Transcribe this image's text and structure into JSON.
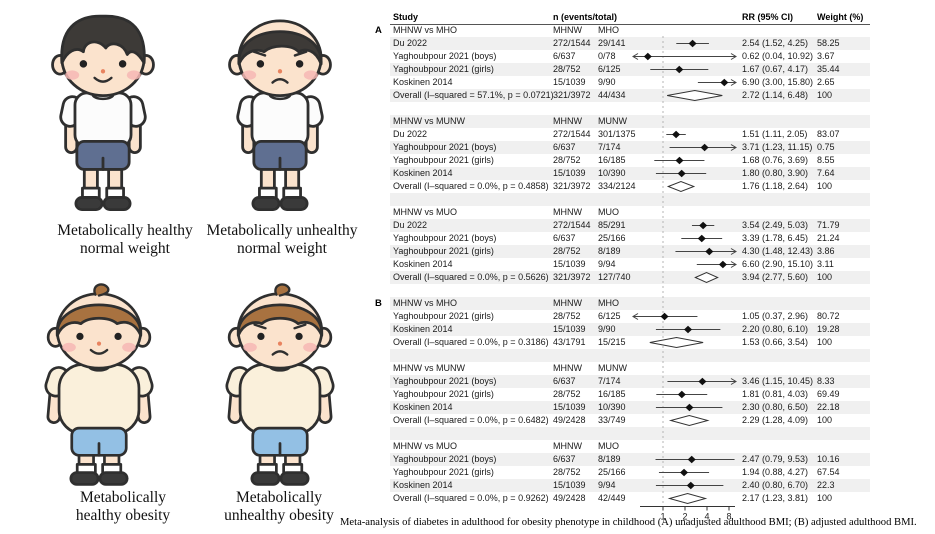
{
  "figure": {
    "caption": "Meta-analysis of diabetes in adulthood for obesity phenotype in childhood (A) unadjusted adulthood BMI; (B) adjusted adulthood BMI."
  },
  "colors": {
    "stripe": "#f0f0f0",
    "ci_line": "#444444",
    "point_diamond": "#111111",
    "overall_diamond_fill": "#ffffff",
    "null_line": "#b5b5b5",
    "skin": "#fbe3cd",
    "blush": "#f6b7b4",
    "dark_hair": "#3d3a37",
    "brown_hair": "#a87240",
    "white_shirt": "#fcfcfc",
    "cream_shirt": "#faf0db",
    "slate_shorts": "#5f6f91",
    "lightblue_shorts": "#93c0e4"
  },
  "phenotypes": {
    "items": [
      {
        "caption_line1": "Metabolically healthy",
        "caption_line2": "normal weight",
        "build": "normal",
        "mood": "happy",
        "hair_style": "curly",
        "colors": {
          "hair": "#3d3a37",
          "shirt": "#fcfcfc",
          "shorts": "#5f6f91",
          "skin": "#fbe3cd"
        }
      },
      {
        "caption_line1": "Metabolically unhealthy",
        "caption_line2": "normal weight",
        "build": "normal",
        "mood": "sad",
        "hair_style": "bowl",
        "colors": {
          "hair": "#3d3a37",
          "shirt": "#fcfcfc",
          "shorts": "#5f6f91",
          "skin": "#fbe3cd"
        }
      },
      {
        "caption_line1": "Metabolically",
        "caption_line2": "healthy obesity",
        "build": "obese",
        "mood": "happy",
        "hair_style": "sprout",
        "colors": {
          "hair": "#a87240",
          "shirt": "#faf0db",
          "shorts": "#93c0e4",
          "skin": "#fbe3cd"
        }
      },
      {
        "caption_line1": "Metabolically",
        "caption_line2": "unhealthy obesity",
        "build": "obese",
        "mood": "sad",
        "hair_style": "sprout",
        "colors": {
          "hair": "#a87240",
          "shirt": "#faf0db",
          "shorts": "#93c0e4",
          "skin": "#fbe3cd"
        }
      }
    ]
  },
  "chart_data": {
    "type": "scatter",
    "subtype": "forest-plot",
    "x_scale": "log2",
    "x_ticks": [
      1,
      2,
      4,
      8
    ],
    "x_plot_range": [
      0.39,
      10
    ],
    "columns": {
      "study": "Study",
      "n": "n (events/total)",
      "rr": "RR (95% CI)",
      "weight": "Weight (%)"
    },
    "sections": [
      {
        "panel": "A",
        "comparison": "MHNW vs MHO",
        "group1": "MHNW",
        "group2": "MHO",
        "studies": [
          {
            "study": "Du 2022",
            "n1": "272/1544",
            "n2": "29/141",
            "rr": 2.54,
            "ci_low": 1.52,
            "ci_high": 4.25,
            "label": "2.54 (1.52, 4.25)",
            "weight": "58.25"
          },
          {
            "study": "Yaghoubpour 2021 (boys)",
            "n1": "6/637",
            "n2": "0/78",
            "rr": 0.62,
            "ci_low": 0.04,
            "ci_high": 10.92,
            "label": "0.62 (0.04, 10.92)",
            "weight": "3.67"
          },
          {
            "study": "Yaghoubpour 2021 (girls)",
            "n1": "28/752",
            "n2": "6/125",
            "rr": 1.67,
            "ci_low": 0.67,
            "ci_high": 4.17,
            "label": "1.67 (0.67, 4.17)",
            "weight": "35.44"
          },
          {
            "study": "Koskinen 2014",
            "n1": "15/1039",
            "n2": "9/90",
            "rr": 6.9,
            "ci_low": 3.0,
            "ci_high": 15.8,
            "label": "6.90 (3.00, 15.80)",
            "weight": "2.65"
          }
        ],
        "overall": {
          "study": "Overall (I–squared = 57.1%, p = 0.0721)",
          "n1": "321/3972",
          "n2": "44/434",
          "rr": 2.72,
          "ci_low": 1.14,
          "ci_high": 6.48,
          "label": "2.72 (1.14, 6.48)",
          "weight": "100"
        }
      },
      {
        "panel": "",
        "comparison": "MHNW vs MUNW",
        "group1": "MHNW",
        "group2": "MUNW",
        "studies": [
          {
            "study": "Du 2022",
            "n1": "272/1544",
            "n2": "301/1375",
            "rr": 1.51,
            "ci_low": 1.11,
            "ci_high": 2.05,
            "label": "1.51 (1.11, 2.05)",
            "weight": "83.07"
          },
          {
            "study": "Yaghoubpour 2021 (boys)",
            "n1": "6/637",
            "n2": "7/174",
            "rr": 3.71,
            "ci_low": 1.23,
            "ci_high": 11.15,
            "label": "3.71 (1.23, 11.15)",
            "weight": "0.75"
          },
          {
            "study": "Yaghoubpour 2021 (girls)",
            "n1": "28/752",
            "n2": "16/185",
            "rr": 1.68,
            "ci_low": 0.76,
            "ci_high": 3.69,
            "label": "1.68 (0.76, 3.69)",
            "weight": "8.55"
          },
          {
            "study": "Koskinen 2014",
            "n1": "15/1039",
            "n2": "10/390",
            "rr": 1.8,
            "ci_low": 0.8,
            "ci_high": 3.9,
            "label": "1.80 (0.80, 3.90)",
            "weight": "7.64"
          }
        ],
        "overall": {
          "study": "Overall (I–squared = 0.0%, p = 0.4858)",
          "n1": "321/3972",
          "n2": "334/2124",
          "rr": 1.76,
          "ci_low": 1.18,
          "ci_high": 2.64,
          "label": "1.76 (1.18, 2.64)",
          "weight": "100"
        }
      },
      {
        "panel": "",
        "comparison": "MHNW vs MUO",
        "group1": "MHNW",
        "group2": "MUO",
        "studies": [
          {
            "study": "Du 2022",
            "n1": "272/1544",
            "n2": "85/291",
            "rr": 3.54,
            "ci_low": 2.49,
            "ci_high": 5.03,
            "label": "3.54 (2.49, 5.03)",
            "weight": "71.79"
          },
          {
            "study": "Yaghoubpour 2021 (boys)",
            "n1": "6/637",
            "n2": "25/166",
            "rr": 3.39,
            "ci_low": 1.78,
            "ci_high": 6.45,
            "label": "3.39 (1.78, 6.45)",
            "weight": "21.24"
          },
          {
            "study": "Yaghoubpour 2021 (girls)",
            "n1": "28/752",
            "n2": "8/189",
            "rr": 4.3,
            "ci_low": 1.48,
            "ci_high": 12.43,
            "label": "4.30 (1.48, 12.43)",
            "weight": "3.86"
          },
          {
            "study": "Koskinen 2014",
            "n1": "15/1039",
            "n2": "9/94",
            "rr": 6.6,
            "ci_low": 2.9,
            "ci_high": 15.1,
            "label": "6.60 (2.90, 15.10)",
            "weight": "3.11"
          }
        ],
        "overall": {
          "study": "Overall (I–squared = 0.0%, p = 0.5626)",
          "n1": "321/3972",
          "n2": "127/740",
          "rr": 3.94,
          "ci_low": 2.77,
          "ci_high": 5.6,
          "label": "3.94 (2.77, 5.60)",
          "weight": "100"
        }
      },
      {
        "panel": "B",
        "comparison": "MHNW vs MHO",
        "group1": "MHNW",
        "group2": "MHO",
        "studies": [
          {
            "study": "Yaghoubpour 2021 (girls)",
            "n1": "28/752",
            "n2": "6/125",
            "rr": 1.05,
            "ci_low": 0.37,
            "ci_high": 2.96,
            "label": "1.05 (0.37, 2.96)",
            "weight": "80.72"
          },
          {
            "study": "Koskinen 2014",
            "n1": "15/1039",
            "n2": "9/90",
            "rr": 2.2,
            "ci_low": 0.8,
            "ci_high": 6.1,
            "label": "2.20 (0.80, 6.10)",
            "weight": "19.28"
          }
        ],
        "overall": {
          "study": "Overall (I–squared = 0.0%, p = 0.3186)",
          "n1": "43/1791",
          "n2": "15/215",
          "rr": 1.53,
          "ci_low": 0.66,
          "ci_high": 3.54,
          "label": "1.53 (0.66, 3.54)",
          "weight": "100"
        }
      },
      {
        "panel": "",
        "comparison": "MHNW vs MUNW",
        "group1": "MHNW",
        "group2": "MUNW",
        "studies": [
          {
            "study": "Yaghoubpour 2021 (boys)",
            "n1": "6/637",
            "n2": "7/174",
            "rr": 3.46,
            "ci_low": 1.15,
            "ci_high": 10.45,
            "label": "3.46 (1.15, 10.45)",
            "weight": "8.33"
          },
          {
            "study": "Yaghoubpour 2021 (girls)",
            "n1": "28/752",
            "n2": "16/185",
            "rr": 1.81,
            "ci_low": 0.81,
            "ci_high": 4.03,
            "label": "1.81 (0.81, 4.03)",
            "weight": "69.49"
          },
          {
            "study": "Koskinen 2014",
            "n1": "15/1039",
            "n2": "10/390",
            "rr": 2.3,
            "ci_low": 0.8,
            "ci_high": 6.5,
            "label": "2.30 (0.80, 6.50)",
            "weight": "22.18"
          }
        ],
        "overall": {
          "study": "Overall (I–squared = 0.0%, p = 0.6482)",
          "n1": "49/2428",
          "n2": "33/749",
          "rr": 2.29,
          "ci_low": 1.28,
          "ci_high": 4.09,
          "label": "2.29 (1.28, 4.09)",
          "weight": "100"
        }
      },
      {
        "panel": "",
        "comparison": "MHNW vs MUO",
        "group1": "MHNW",
        "group2": "MUO",
        "studies": [
          {
            "study": "Yaghoubpour 2021 (boys)",
            "n1": "6/637",
            "n2": "8/189",
            "rr": 2.47,
            "ci_low": 0.79,
            "ci_high": 9.53,
            "label": "2.47 (0.79, 9.53)",
            "weight": "10.16"
          },
          {
            "study": "Yaghoubpour 2021 (girls)",
            "n1": "28/752",
            "n2": "25/166",
            "rr": 1.94,
            "ci_low": 0.88,
            "ci_high": 4.27,
            "label": "1.94 (0.88, 4.27)",
            "weight": "67.54"
          },
          {
            "study": "Koskinen 2014",
            "n1": "15/1039",
            "n2": "9/94",
            "rr": 2.4,
            "ci_low": 0.8,
            "ci_high": 6.7,
            "label": "2.40 (0.80, 6.70)",
            "weight": "22.3"
          }
        ],
        "overall": {
          "study": "Overall (I–squared = 0.0%, p = 0.9262)",
          "n1": "49/2428",
          "n2": "42/449",
          "rr": 2.17,
          "ci_low": 1.23,
          "ci_high": 3.81,
          "label": "2.17 (1.23, 3.81)",
          "weight": "100"
        }
      }
    ]
  }
}
